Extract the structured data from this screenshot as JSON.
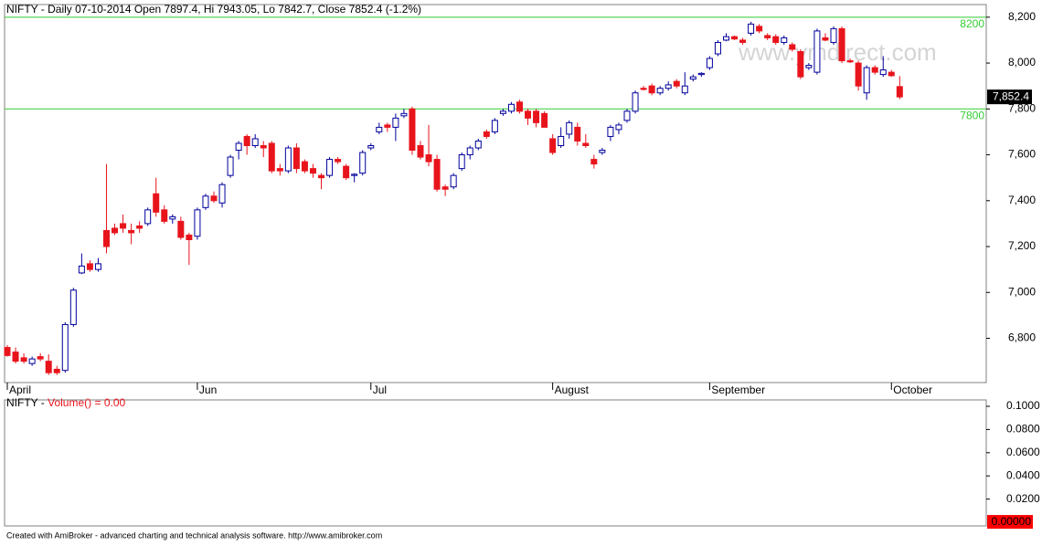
{
  "chart_data": [
    {
      "type": "candlestick",
      "title": "NIFTY - Daily 07-10-2014 Open 7897.4, Hi 7943.05, Lo 7842.7, Close 7852.4 (-1.2%)",
      "watermark": "www.ymdirect.com",
      "up_color": "#00009c",
      "down_color": "#e8141c",
      "categories": [
        "April",
        null,
        null,
        null,
        null,
        null,
        null,
        null,
        null,
        null,
        null,
        null,
        null,
        null,
        null,
        null,
        null,
        null,
        null,
        null,
        null,
        null,
        null,
        "Jun",
        null,
        null,
        null,
        null,
        null,
        null,
        null,
        null,
        null,
        null,
        null,
        null,
        null,
        null,
        null,
        null,
        null,
        null,
        null,
        null,
        "Jul",
        null,
        null,
        null,
        null,
        null,
        null,
        null,
        null,
        null,
        null,
        null,
        null,
        null,
        null,
        null,
        null,
        null,
        null,
        null,
        null,
        null,
        "August",
        null,
        null,
        null,
        null,
        null,
        null,
        null,
        null,
        null,
        null,
        null,
        null,
        null,
        null,
        null,
        null,
        null,
        null,
        "September",
        null,
        null,
        null,
        null,
        null,
        null,
        null,
        null,
        null,
        null,
        null,
        null,
        null,
        null,
        null,
        null,
        null,
        null,
        null,
        null,
        null,
        "October",
        null
      ],
      "open": [
        6760,
        6740,
        6715,
        6690,
        6720,
        6700,
        6665,
        6660,
        6860,
        7085,
        7125,
        7100,
        7270,
        7280,
        7300,
        7270,
        7290,
        7300,
        7430,
        7360,
        7320,
        7310,
        7250,
        7245,
        7370,
        7420,
        7390,
        7510,
        7620,
        7680,
        7640,
        7640,
        7650,
        7540,
        7530,
        7630,
        7570,
        7540,
        7510,
        7510,
        7580,
        7550,
        7510,
        7520,
        7630,
        7700,
        7730,
        7720,
        7770,
        7800,
        7640,
        7600,
        7580,
        7460,
        7460,
        7540,
        7600,
        7630,
        7700,
        7700,
        7780,
        7790,
        7830,
        7790,
        7790,
        7780,
        7670,
        7640,
        7690,
        7720,
        7650,
        7580,
        7610,
        7680,
        7710,
        7750,
        7790,
        7890,
        7900,
        7870,
        7890,
        7920,
        7870,
        7930,
        7950,
        7980,
        8040,
        8100,
        8115,
        8100,
        8130,
        8160,
        8120,
        8115,
        8090,
        8080,
        8050,
        7980,
        7960,
        8110,
        8090,
        8150,
        8010,
        8000,
        7870,
        7980,
        7950,
        7960,
        7897.4
      ],
      "high": [
        6770,
        6760,
        6735,
        6720,
        6735,
        6730,
        6680,
        6870,
        7020,
        7170,
        7140,
        7150,
        7560,
        7300,
        7340,
        7300,
        7310,
        7370,
        7500,
        7380,
        7340,
        7330,
        7260,
        7370,
        7430,
        7440,
        7480,
        7600,
        7660,
        7690,
        7690,
        7660,
        7660,
        7560,
        7640,
        7650,
        7580,
        7560,
        7520,
        7590,
        7590,
        7560,
        7520,
        7620,
        7650,
        7740,
        7740,
        7780,
        7800,
        7810,
        7660,
        7730,
        7600,
        7470,
        7520,
        7610,
        7640,
        7670,
        7710,
        7760,
        7800,
        7830,
        7840,
        7800,
        7800,
        7790,
        7690,
        7720,
        7750,
        7740,
        7690,
        7600,
        7630,
        7730,
        7740,
        7800,
        7880,
        7900,
        7910,
        7900,
        7920,
        7930,
        7960,
        7950,
        7960,
        8030,
        8100,
        8130,
        8120,
        8110,
        8180,
        8170,
        8130,
        8125,
        8120,
        8090,
        8060,
        8000,
        8150,
        8130,
        8160,
        8160,
        8020,
        8010,
        7990,
        7990,
        8030,
        7970,
        7943.05
      ],
      "low": [
        6720,
        6690,
        6690,
        6680,
        6700,
        6640,
        6640,
        6650,
        6850,
        7080,
        7090,
        7090,
        7170,
        7250,
        7260,
        7210,
        7260,
        7290,
        7330,
        7300,
        7300,
        7230,
        7120,
        7230,
        7360,
        7390,
        7370,
        7500,
        7580,
        7600,
        7630,
        7590,
        7520,
        7510,
        7520,
        7520,
        7520,
        7500,
        7450,
        7500,
        7560,
        7490,
        7480,
        7510,
        7620,
        7690,
        7700,
        7660,
        7760,
        7600,
        7580,
        7550,
        7440,
        7420,
        7450,
        7530,
        7580,
        7620,
        7670,
        7690,
        7770,
        7780,
        7780,
        7730,
        7720,
        7720,
        7600,
        7630,
        7670,
        7640,
        7630,
        7540,
        7600,
        7660,
        7690,
        7740,
        7780,
        7880,
        7860,
        7860,
        7880,
        7890,
        7860,
        7920,
        7940,
        7970,
        8030,
        8095,
        8100,
        8080,
        8120,
        8130,
        8100,
        8080,
        8080,
        8050,
        7930,
        7970,
        7950,
        8095,
        8080,
        8000,
        8000,
        7880,
        7840,
        7950,
        7940,
        7940,
        7842.7
      ],
      "close": [
        6725,
        6700,
        6700,
        6710,
        6710,
        6650,
        6650,
        6860,
        7010,
        7115,
        7100,
        7125,
        7200,
        7260,
        7280,
        7260,
        7280,
        7360,
        7350,
        7310,
        7330,
        7240,
        7230,
        7360,
        7420,
        7400,
        7470,
        7590,
        7650,
        7640,
        7670,
        7630,
        7530,
        7530,
        7630,
        7540,
        7530,
        7520,
        7500,
        7580,
        7570,
        7500,
        7515,
        7610,
        7640,
        7720,
        7720,
        7760,
        7780,
        7620,
        7590,
        7570,
        7450,
        7450,
        7510,
        7600,
        7630,
        7660,
        7680,
        7750,
        7790,
        7820,
        7790,
        7760,
        7740,
        7720,
        7610,
        7680,
        7740,
        7660,
        7640,
        7560,
        7620,
        7720,
        7730,
        7790,
        7870,
        7885,
        7870,
        7890,
        7905,
        7900,
        7900,
        7940,
        7955,
        8020,
        8090,
        8115,
        8105,
        8090,
        8170,
        8140,
        8110,
        8090,
        8110,
        8060,
        7940,
        7990,
        8140,
        8100,
        8150,
        8010,
        8005,
        7900,
        7980,
        7960,
        7970,
        7945,
        7852.4
      ],
      "ylim": [
        6607,
        8255
      ],
      "yticks": [
        {
          "value": 6800,
          "label": "6,800"
        },
        {
          "value": 7000,
          "label": "7,000"
        },
        {
          "value": 7200,
          "label": "7,200"
        },
        {
          "value": 7400,
          "label": "7,400"
        },
        {
          "value": 7600,
          "label": "7,600"
        },
        {
          "value": 7800,
          "label": "7,800"
        },
        {
          "value": 8000,
          "label": "8,000"
        },
        {
          "value": 8200,
          "label": "8,200"
        }
      ],
      "hlines": [
        8200,
        7800
      ],
      "hline_color": "#33cc33",
      "last_price": {
        "value": 7852.4,
        "label": "7,852.4"
      }
    },
    {
      "type": "line",
      "title_parts": [
        "NIFTY - ",
        "Volume() = 0.00"
      ],
      "color": "#e8141c",
      "ylim": [
        -0.0031,
        0.1055
      ],
      "yticks": [
        {
          "value": 0.02,
          "label": "0.0200"
        },
        {
          "value": 0.04,
          "label": "0.0400"
        },
        {
          "value": 0.06,
          "label": "0.0600"
        },
        {
          "value": 0.08,
          "label": "0.0800"
        },
        {
          "value": 0.1,
          "label": "0.1000"
        }
      ],
      "last_value": {
        "value": 0,
        "label": "0.00000"
      }
    }
  ],
  "footer": "Created with AmiBroker - advanced charting and technical analysis software. http://www.amibroker.com"
}
